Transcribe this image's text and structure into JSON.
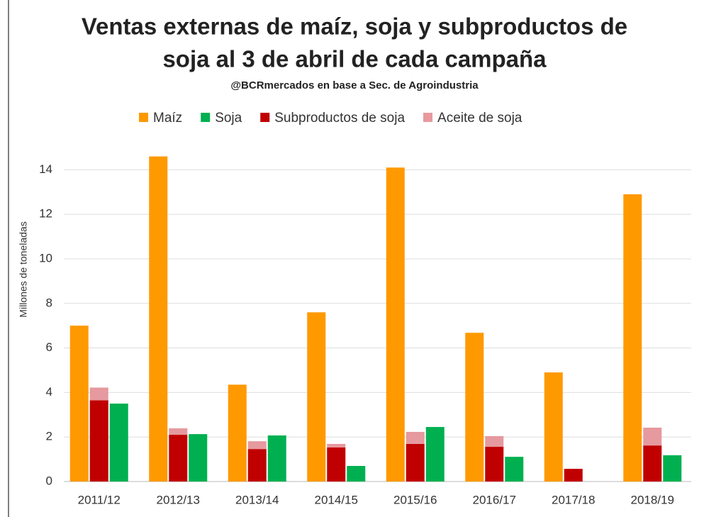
{
  "chart_data": {
    "type": "bar",
    "title": "Ventas externas de maíz, soja y subproductos de soja al 3 de abril de cada campaña",
    "title_lines": [
      "Ventas externas de maíz, soja y subproductos de",
      "soja al 3 de abril de cada campaña"
    ],
    "subtitle": "@BCRmercados en base a Sec. de Agroindustria",
    "ylabel": "Millones de toneladas",
    "categories": [
      "2011/12",
      "2012/13",
      "2013/14",
      "2014/15",
      "2015/16",
      "2016/17",
      "2017/18",
      "2018/19"
    ],
    "series": [
      {
        "name": "Maíz",
        "color": "#ff9900",
        "values": [
          7.0,
          14.6,
          4.35,
          7.6,
          14.1,
          6.68,
          4.9,
          12.9
        ]
      },
      {
        "name": "Soja",
        "color": "#00b050",
        "values": [
          3.5,
          2.13,
          2.07,
          0.7,
          2.45,
          1.11,
          0,
          1.18
        ]
      },
      {
        "name": "Subproductos de soja",
        "color": "#c00000",
        "values": [
          3.65,
          2.1,
          1.46,
          1.53,
          1.69,
          1.56,
          0.57,
          1.62
        ]
      },
      {
        "name": "Aceite de soja",
        "color": "#e6999e",
        "values": [
          0.57,
          0.29,
          0.35,
          0.16,
          0.54,
          0.48,
          0,
          0.8
        ]
      }
    ],
    "bar_groups": [
      [
        0
      ],
      [
        2,
        3
      ],
      [
        1
      ]
    ],
    "ylim": [
      0,
      15
    ],
    "yticks": [
      0,
      2,
      4,
      6,
      8,
      10,
      12,
      14
    ],
    "grid": true,
    "legend": "top"
  }
}
